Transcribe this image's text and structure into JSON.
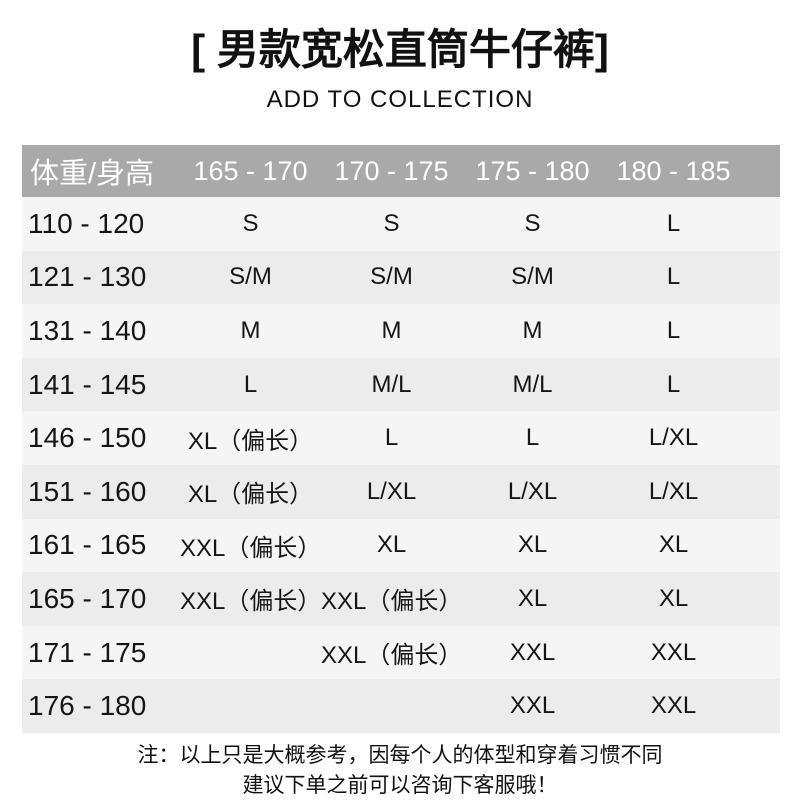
{
  "title": "[ 男款宽松直筒牛仔裤]",
  "subtitle": "ADD TO COLLECTION",
  "table": {
    "header": [
      "体重/身高",
      "165 - 170",
      "170 - 175",
      "175 - 180",
      "180 - 185"
    ],
    "rows": [
      {
        "weight": "110 - 120",
        "values": [
          "S",
          "S",
          "S",
          "L"
        ]
      },
      {
        "weight": "121 - 130",
        "values": [
          "S/M",
          "S/M",
          "S/M",
          "L"
        ]
      },
      {
        "weight": "131 - 140",
        "values": [
          "M",
          "M",
          "M",
          "L"
        ]
      },
      {
        "weight": "141 - 145",
        "values": [
          "L",
          "M/L",
          "M/L",
          "L"
        ]
      },
      {
        "weight": "146 - 150",
        "values": [
          "XL（偏长）",
          "L",
          "L",
          "L/XL"
        ]
      },
      {
        "weight": "151 - 160",
        "values": [
          "XL（偏长）",
          "L/XL",
          "L/XL",
          "L/XL"
        ]
      },
      {
        "weight": "161 - 165",
        "values": [
          "XXL（偏长）",
          "XL",
          "XL",
          "XL"
        ]
      },
      {
        "weight": "165 - 170",
        "values": [
          "XXL（偏长）",
          "XXL（偏长）",
          "XL",
          "XL"
        ]
      },
      {
        "weight": "171 - 175",
        "values": [
          "",
          "XXL（偏长）",
          "XXL",
          "XXL"
        ]
      },
      {
        "weight": "176 - 180",
        "values": [
          "",
          "",
          "XXL",
          "XXL"
        ]
      }
    ]
  },
  "note": {
    "line1": "注：以上只是大概参考，因每个人的体型和穿着习惯不同",
    "line2": "建议下单之前可以咨询下客服哦！"
  },
  "colors": {
    "header_bg": "#a9a9a9",
    "header_text": "#ffffff",
    "row_odd": "#f5f5f5",
    "row_even": "#ececec",
    "body_text": "#151515"
  }
}
